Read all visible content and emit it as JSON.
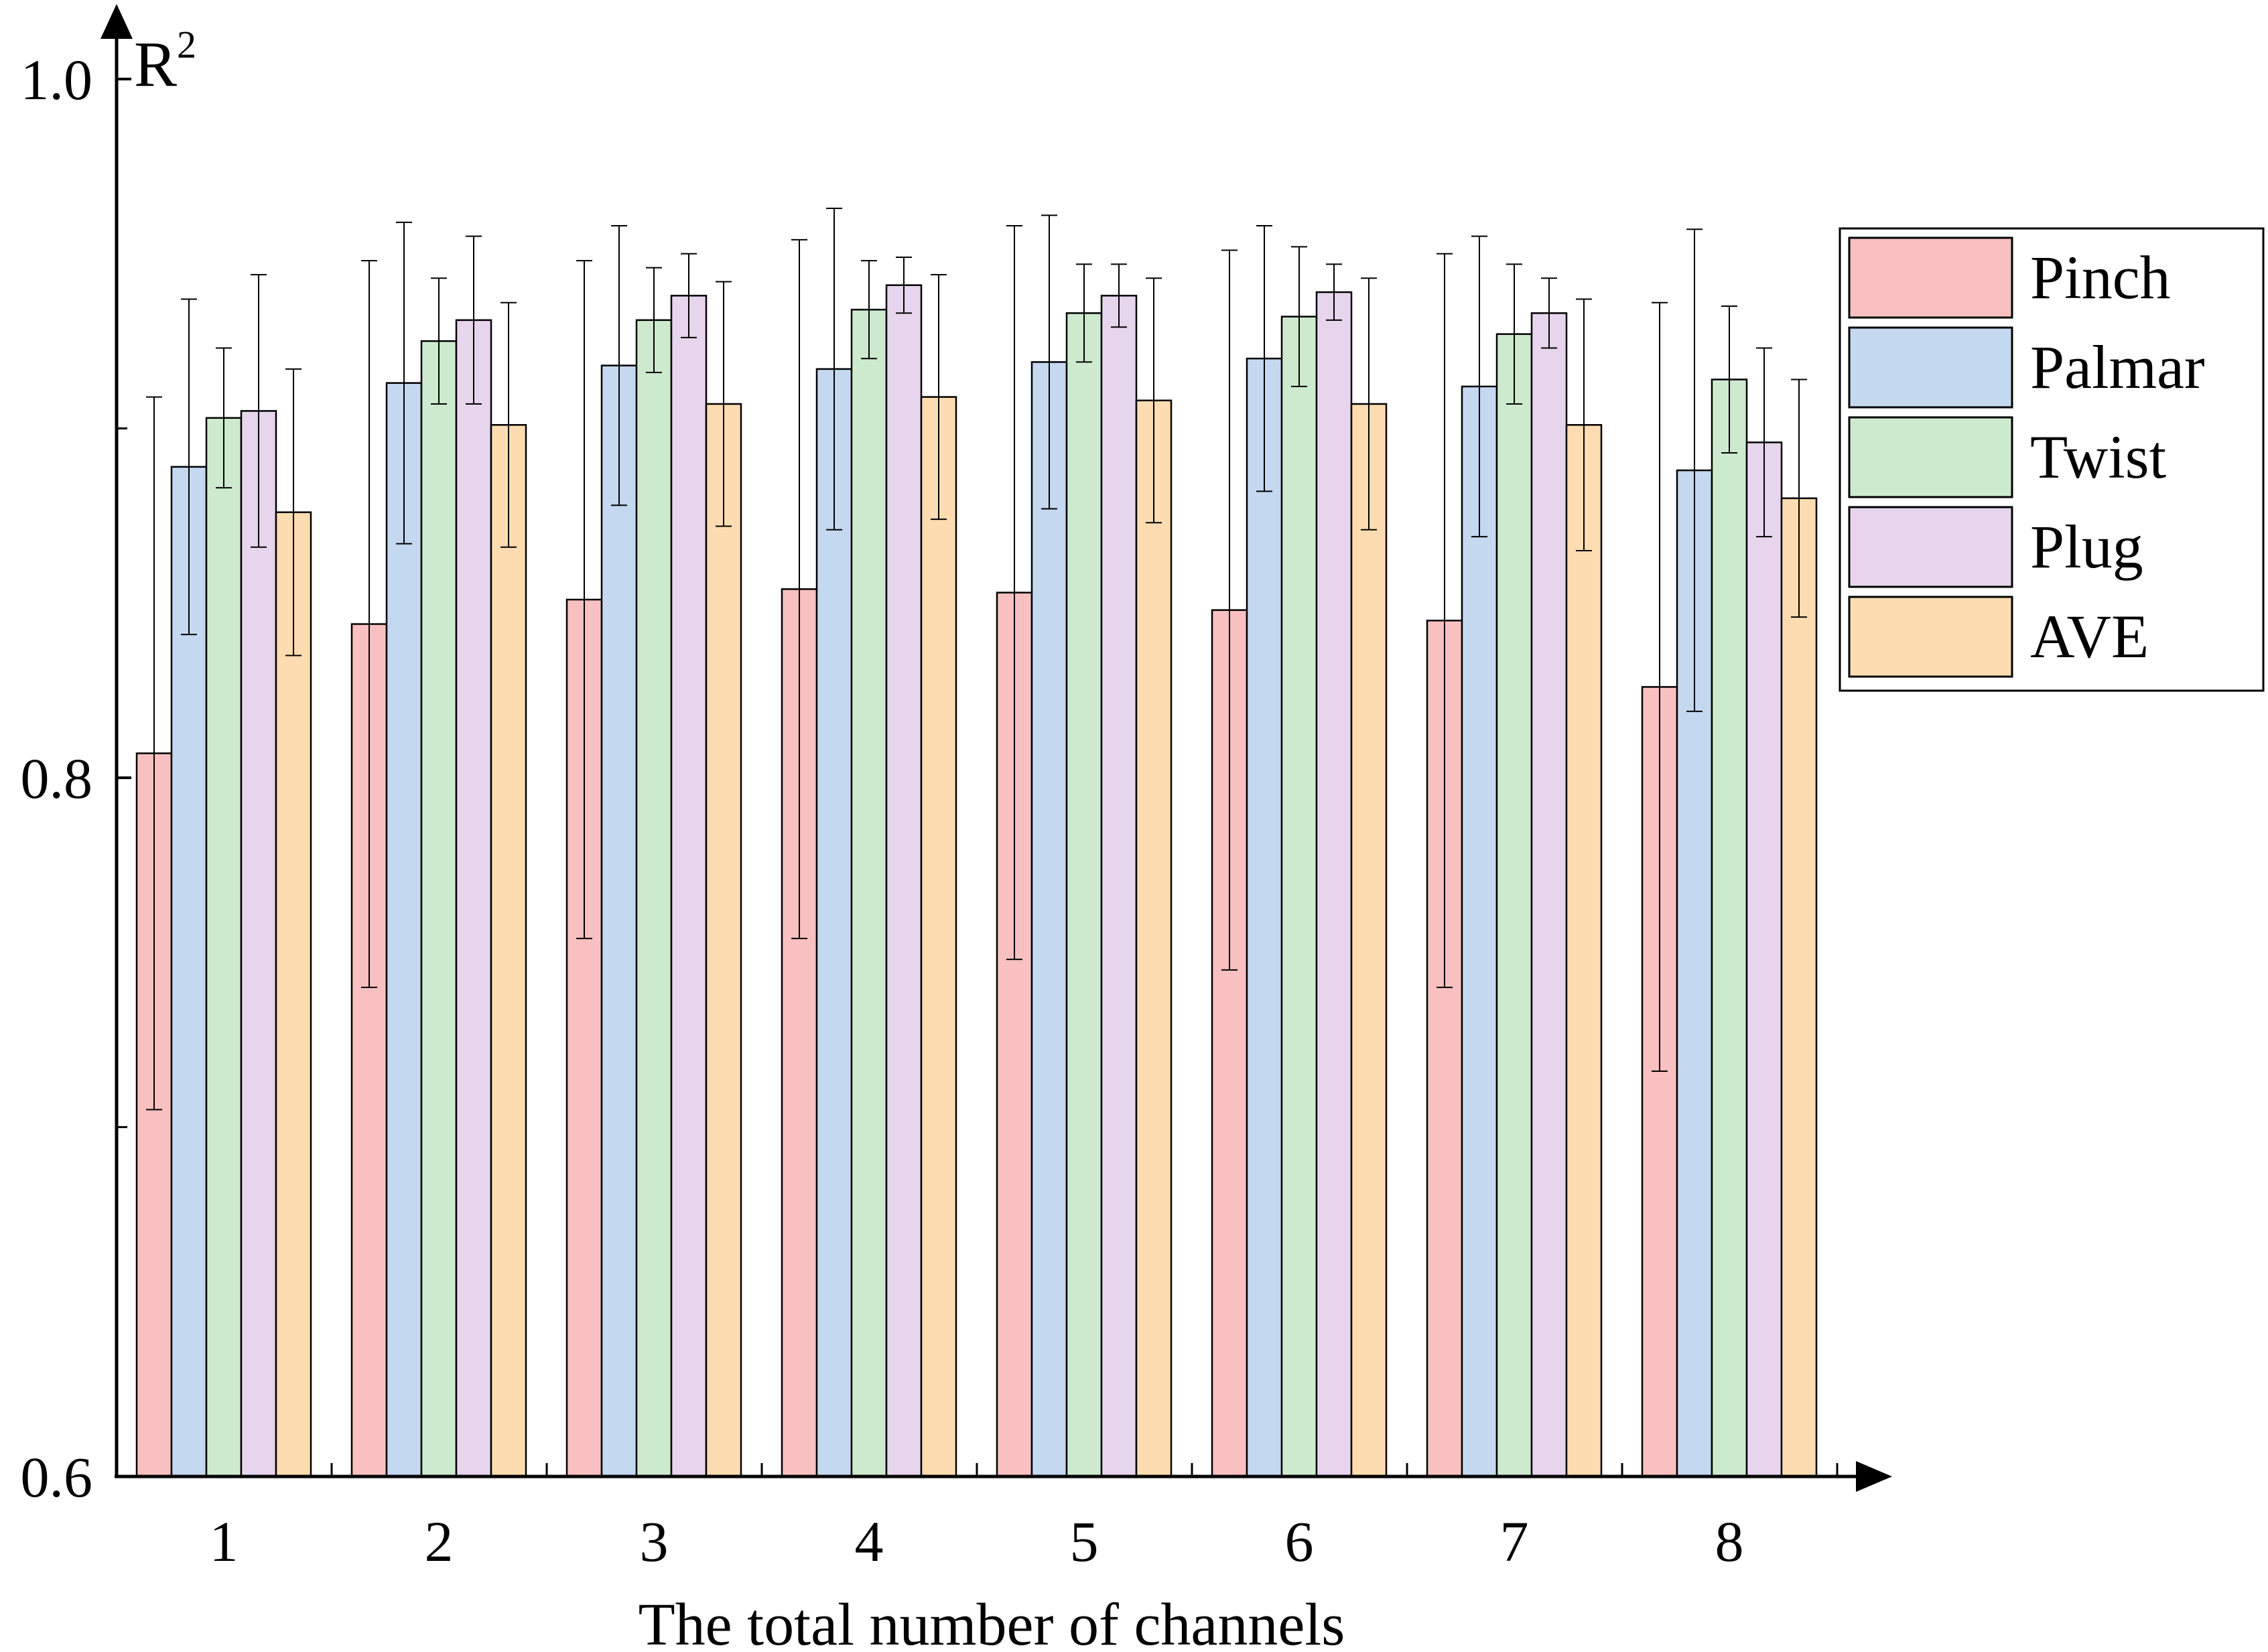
{
  "chart_data": {
    "type": "bar",
    "title": "",
    "xlabel": "The total number of channels",
    "ylabel": "R",
    "ylabel_superscript": "2",
    "ylim": [
      0.6,
      1.0
    ],
    "yticks": [
      "0.6",
      "0.8",
      "1.0"
    ],
    "categories": [
      "1",
      "2",
      "3",
      "4",
      "5",
      "6",
      "7",
      "8"
    ],
    "legend_position": "top-right",
    "grid": false,
    "series": [
      {
        "name": "Pinch",
        "color": "#f8c0c0",
        "values": [
          0.807,
          0.844,
          0.851,
          0.854,
          0.853,
          0.848,
          0.845,
          0.826
        ],
        "errors": [
          0.102,
          0.104,
          0.097,
          0.1,
          0.105,
          0.103,
          0.105,
          0.11
        ]
      },
      {
        "name": "Palmar",
        "color": "#c4d8ef",
        "values": [
          0.889,
          0.913,
          0.918,
          0.917,
          0.919,
          0.92,
          0.912,
          0.888
        ],
        "errors": [
          0.048,
          0.046,
          0.04,
          0.046,
          0.042,
          0.038,
          0.043,
          0.069
        ]
      },
      {
        "name": "Twist",
        "color": "#cdeacf",
        "values": [
          0.903,
          0.925,
          0.931,
          0.934,
          0.933,
          0.932,
          0.927,
          0.914
        ],
        "errors": [
          0.02,
          0.018,
          0.015,
          0.014,
          0.014,
          0.02,
          0.02,
          0.021
        ]
      },
      {
        "name": "Plug",
        "color": "#e6d5ec",
        "values": [
          0.905,
          0.931,
          0.938,
          0.941,
          0.938,
          0.939,
          0.933,
          0.896
        ],
        "errors": [
          0.039,
          0.024,
          0.012,
          0.008,
          0.009,
          0.008,
          0.01,
          0.027
        ]
      },
      {
        "name": "AVE",
        "color": "#fcdcb0",
        "values": [
          0.876,
          0.901,
          0.907,
          0.909,
          0.908,
          0.907,
          0.901,
          0.88
        ],
        "errors": [
          0.041,
          0.035,
          0.035,
          0.035,
          0.035,
          0.036,
          0.036,
          0.034
        ]
      }
    ]
  }
}
